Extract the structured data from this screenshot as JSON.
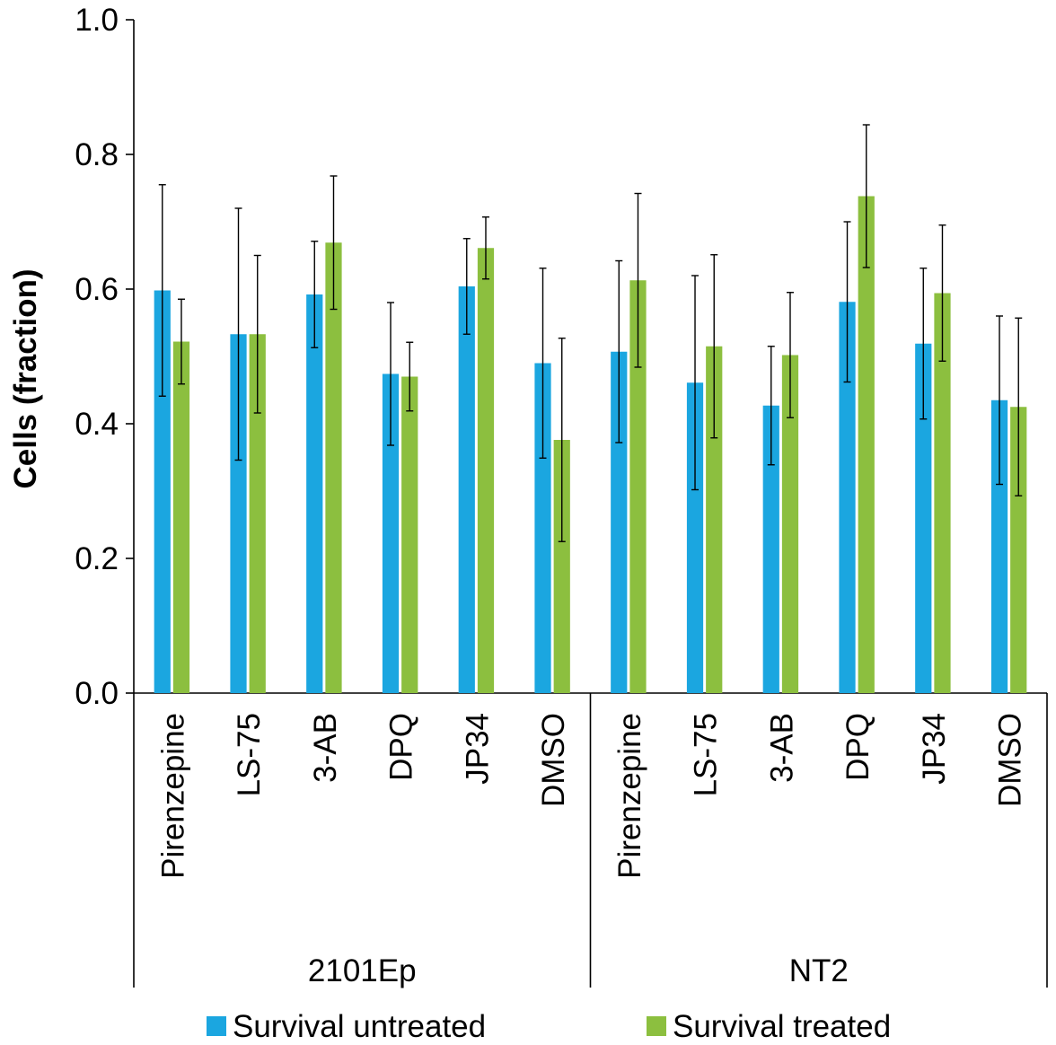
{
  "chart_data": {
    "type": "bar",
    "ylabel": "Cells (fraction)",
    "ylim": [
      0,
      1.0
    ],
    "yticks": [
      0.0,
      0.2,
      0.4,
      0.6,
      0.8,
      1.0
    ],
    "ytick_labels": [
      "0.0",
      "0.2",
      "0.4",
      "0.6",
      "0.8",
      "1.0"
    ],
    "grid": false,
    "legend_position": "bottom",
    "groups": [
      {
        "label": "2101Ep",
        "categories": [
          "Pirenzepine",
          "LS-75",
          "3-AB",
          "DPQ",
          "JP34",
          "DMSO"
        ]
      },
      {
        "label": "NT2",
        "categories": [
          "Pirenzepine",
          "LS-75",
          "3-AB",
          "DPQ",
          "JP34",
          "DMSO"
        ]
      }
    ],
    "series": [
      {
        "name": "Survival untreated",
        "color": "#1ba6e0",
        "values": [
          0.598,
          0.533,
          0.592,
          0.474,
          0.604,
          0.49,
          0.507,
          0.461,
          0.427,
          0.581,
          0.519,
          0.435
        ],
        "errors": [
          0.157,
          0.187,
          0.079,
          0.106,
          0.071,
          0.141,
          0.135,
          0.159,
          0.088,
          0.119,
          0.112,
          0.125
        ]
      },
      {
        "name": "Survival treated",
        "color": "#8cbf3f",
        "values": [
          0.522,
          0.533,
          0.669,
          0.47,
          0.661,
          0.376,
          0.613,
          0.515,
          0.502,
          0.738,
          0.594,
          0.425
        ],
        "errors": [
          0.063,
          0.117,
          0.099,
          0.051,
          0.046,
          0.151,
          0.129,
          0.136,
          0.093,
          0.106,
          0.101,
          0.132
        ]
      }
    ]
  }
}
